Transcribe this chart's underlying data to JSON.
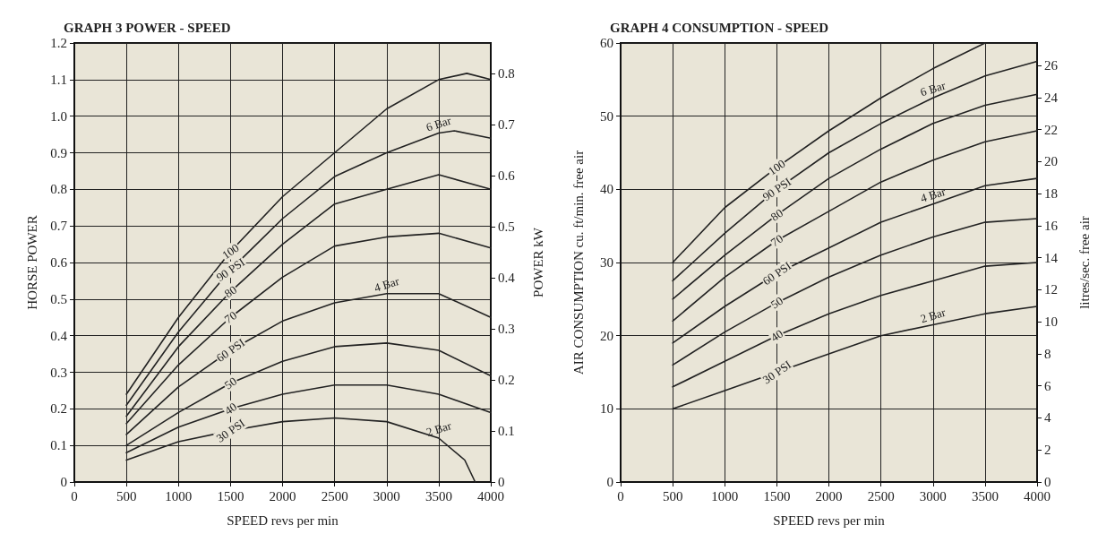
{
  "chart_data": [
    {
      "type": "line",
      "title": "GRAPH 3 POWER - SPEED",
      "xlabel": "SPEED revs per min",
      "ylabel": "HORSE POWER",
      "y2label": "POWER kW",
      "xlim": [
        0,
        4000
      ],
      "xticks": [
        0,
        500,
        1000,
        1500,
        2000,
        2500,
        3000,
        3500,
        4000
      ],
      "ylim": [
        0,
        1.2
      ],
      "yticks": [
        0,
        0.1,
        0.2,
        0.3,
        0.4,
        0.5,
        0.6,
        0.7,
        0.8,
        0.9,
        {
          "value": 1,
          "label": "1.0"
        },
        1.1,
        1.2
      ],
      "y2lim": [
        0,
        0.86
      ],
      "y2ticks": [
        0,
        0.1,
        0.2,
        0.3,
        0.4,
        0.5,
        0.6,
        0.7,
        0.8
      ],
      "grid": true,
      "legend": false,
      "marker": "none",
      "line_style": "solid",
      "series": [
        {
          "name": "100",
          "color": "#222222",
          "x": [
            500,
            1000,
            1500,
            2000,
            2500,
            3000,
            3500,
            3770,
            4000
          ],
          "values": [
            0.24,
            0.45,
            0.63,
            0.78,
            0.9,
            1.02,
            1.1,
            1.117,
            1.1
          ]
        },
        {
          "name": "90 PSI",
          "color": "#222222",
          "x": [
            500,
            1000,
            1500,
            2000,
            2500,
            3000,
            3500,
            3650,
            4000
          ],
          "values": [
            0.21,
            0.41,
            0.58,
            0.72,
            0.835,
            0.9,
            0.954,
            0.96,
            0.94
          ]
        },
        {
          "name": "80",
          "color": "#222222",
          "x": [
            500,
            1000,
            1500,
            2000,
            2500,
            3000,
            3500,
            4000
          ],
          "values": [
            0.18,
            0.37,
            0.52,
            0.65,
            0.76,
            0.8,
            0.84,
            0.8
          ]
        },
        {
          "name": "70",
          "color": "#222222",
          "x": [
            500,
            1000,
            1500,
            2000,
            2500,
            3000,
            3500,
            4000
          ],
          "values": [
            0.16,
            0.32,
            0.45,
            0.56,
            0.645,
            0.67,
            0.68,
            0.64
          ]
        },
        {
          "name": "60 PSI",
          "color": "#222222",
          "x": [
            500,
            1000,
            1500,
            2000,
            2500,
            3000,
            3500,
            4000
          ],
          "values": [
            0.13,
            0.26,
            0.36,
            0.44,
            0.49,
            0.515,
            0.515,
            0.45
          ]
        },
        {
          "name": "50",
          "color": "#222222",
          "x": [
            500,
            1000,
            1500,
            2000,
            2500,
            3000,
            3500,
            4000
          ],
          "values": [
            0.1,
            0.19,
            0.27,
            0.33,
            0.37,
            0.38,
            0.36,
            0.29
          ]
        },
        {
          "name": "40",
          "color": "#222222",
          "x": [
            500,
            1000,
            1500,
            2000,
            2500,
            3000,
            3500,
            4000
          ],
          "values": [
            0.08,
            0.15,
            0.2,
            0.24,
            0.265,
            0.265,
            0.24,
            0.19
          ]
        },
        {
          "name": "30 PSI",
          "color": "#222222",
          "x": [
            500,
            1000,
            1500,
            2000,
            2500,
            3000,
            3500,
            3750,
            3850
          ],
          "values": [
            0.06,
            0.11,
            0.14,
            0.165,
            0.175,
            0.165,
            0.12,
            0.06,
            0
          ]
        }
      ],
      "annotations": [
        "6 Bar",
        "4 Bar",
        "2 Bar"
      ]
    },
    {
      "type": "line",
      "title": "GRAPH 4 CONSUMPTION - SPEED",
      "xlabel": "SPEED revs per min",
      "ylabel": "AIR CONSUMPTION cu. ft/min. free air",
      "y2label": "litres/sec. free air",
      "xlim": [
        0,
        4000
      ],
      "xticks": [
        0,
        500,
        1000,
        1500,
        2000,
        2500,
        3000,
        3500,
        4000
      ],
      "ylim": [
        0,
        60
      ],
      "yticks": [
        0,
        10,
        20,
        30,
        40,
        50,
        60
      ],
      "y2lim": [
        0,
        27.4
      ],
      "y2ticks": [
        0,
        2,
        4,
        6,
        8,
        10,
        12,
        14,
        16,
        18,
        20,
        22,
        24,
        26
      ],
      "grid": true,
      "legend": false,
      "marker": "none",
      "line_style": "solid",
      "series": [
        {
          "name": "100",
          "color": "#222222",
          "x": [
            500,
            1000,
            1500,
            2000,
            2500,
            3000,
            3500
          ],
          "values": [
            30,
            37.5,
            43,
            48,
            52.5,
            56.5,
            60
          ]
        },
        {
          "name": "90 PSI",
          "color": "#222222",
          "x": [
            500,
            1000,
            1500,
            2000,
            2500,
            3000,
            3500,
            4000
          ],
          "values": [
            27.5,
            34,
            40,
            45,
            49,
            52.5,
            55.5,
            57.5
          ]
        },
        {
          "name": "80",
          "color": "#222222",
          "x": [
            500,
            1000,
            1500,
            2000,
            2500,
            3000,
            3500,
            4000
          ],
          "values": [
            25,
            31,
            36.5,
            41.5,
            45.5,
            49,
            51.5,
            53
          ]
        },
        {
          "name": "70",
          "color": "#222222",
          "x": [
            500,
            1000,
            1500,
            2000,
            2500,
            3000,
            3500,
            4000
          ],
          "values": [
            22,
            28,
            33,
            37,
            41,
            44,
            46.5,
            48
          ]
        },
        {
          "name": "60 PSI",
          "color": "#222222",
          "x": [
            500,
            1000,
            1500,
            2000,
            2500,
            3000,
            3500,
            4000
          ],
          "values": [
            19,
            24,
            28.5,
            32,
            35.5,
            38,
            40.5,
            41.5
          ]
        },
        {
          "name": "50",
          "color": "#222222",
          "x": [
            500,
            1000,
            1500,
            2000,
            2500,
            3000,
            3500,
            4000
          ],
          "values": [
            16,
            20.5,
            24.5,
            28,
            31,
            33.5,
            35.5,
            36
          ]
        },
        {
          "name": "40",
          "color": "#222222",
          "x": [
            500,
            1000,
            1500,
            2000,
            2500,
            3000,
            3500,
            4000
          ],
          "values": [
            13,
            16.5,
            20,
            23,
            25.5,
            27.5,
            29.5,
            30
          ]
        },
        {
          "name": "30 PSI",
          "color": "#222222",
          "x": [
            500,
            1000,
            1500,
            2000,
            2500,
            3000,
            3500,
            4000
          ],
          "values": [
            10,
            12.5,
            15,
            17.5,
            20,
            21.5,
            23,
            24
          ]
        }
      ],
      "annotations": [
        "6 Bar",
        "4 Bar",
        "2 Bar"
      ]
    }
  ]
}
